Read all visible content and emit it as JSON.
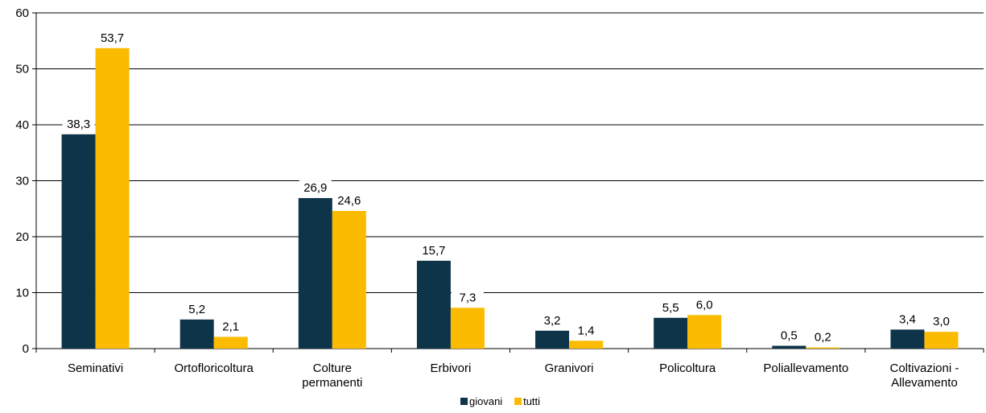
{
  "chart_data": {
    "type": "bar",
    "categories": [
      [
        "Seminativi"
      ],
      [
        "Ortofloricoltura"
      ],
      [
        "Colture",
        "permanenti"
      ],
      [
        "Erbivori"
      ],
      [
        "Granivori"
      ],
      [
        "Policoltura"
      ],
      [
        "Poliallevamento"
      ],
      [
        "Coltivazioni -",
        "Allevamento"
      ]
    ],
    "series": [
      {
        "name": "giovani",
        "color": "#0d3449",
        "values": [
          38.3,
          5.2,
          26.9,
          15.7,
          3.2,
          5.5,
          0.5,
          3.4
        ],
        "labels": [
          "38,3",
          "5,2",
          "26,9",
          "15,7",
          "3,2",
          "5,5",
          "0,5",
          "3,4"
        ]
      },
      {
        "name": "tutti",
        "color": "#fbbb00",
        "values": [
          53.7,
          2.1,
          24.6,
          7.3,
          1.4,
          6.0,
          0.2,
          3.0
        ],
        "labels": [
          "53,7",
          "2,1",
          "24,6",
          "7,3",
          "1,4",
          "6,0",
          "0,2",
          "3,0"
        ]
      }
    ],
    "ylim": [
      0,
      60
    ],
    "yticks": [
      "0",
      "10",
      "20",
      "30",
      "40",
      "50",
      "60"
    ],
    "grid": true,
    "legend_position": "bottom-center",
    "title": "",
    "xlabel": "",
    "ylabel": ""
  }
}
